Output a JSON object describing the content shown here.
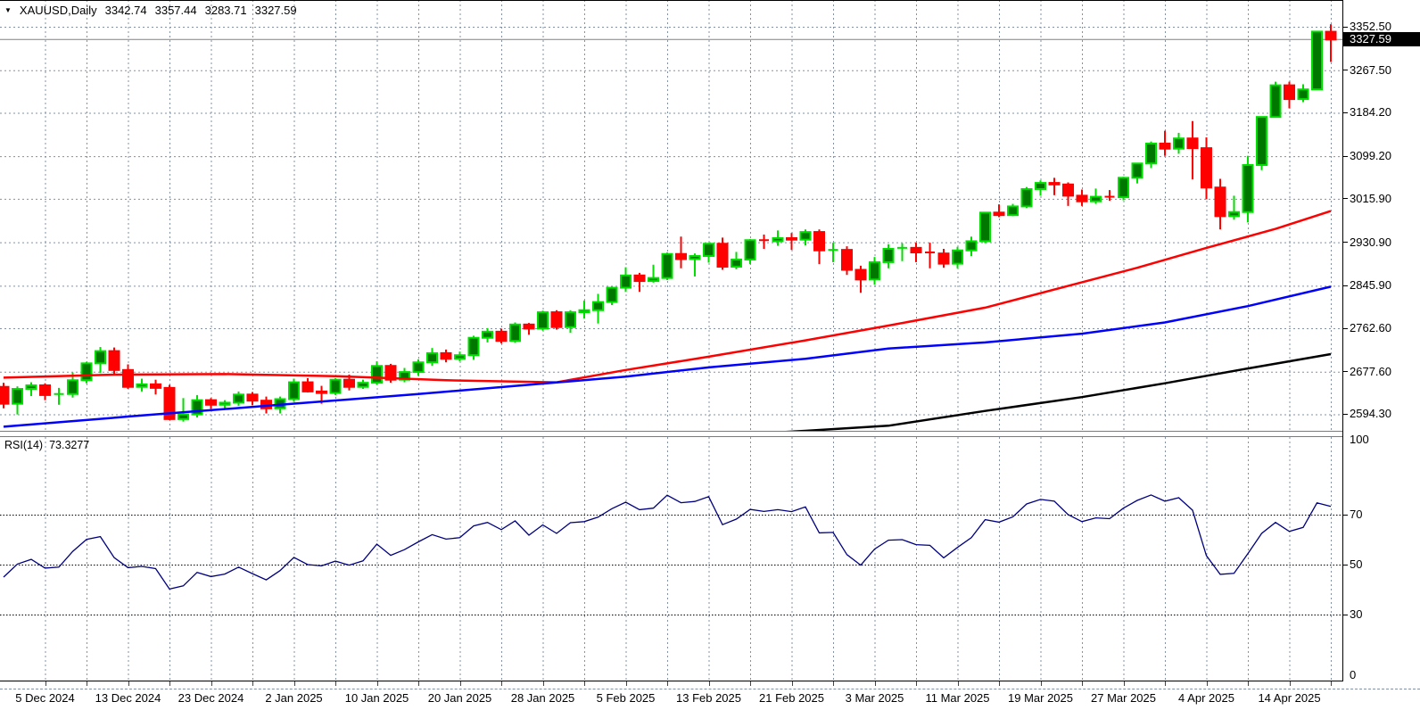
{
  "window": {
    "dropdown_icon": "triangle-down",
    "symbol": "XAUUSD,Daily",
    "ohlc": {
      "open": "3342.74",
      "high": "3357.44",
      "low": "3283.71",
      "close": "3327.59"
    }
  },
  "indicator_row": {
    "label": "RSI(14)",
    "value": "73.3277"
  },
  "price_axis": {
    "labels": [
      "3352.50",
      "3267.50",
      "3184.20",
      "3099.20",
      "3015.90",
      "2930.90",
      "2845.90",
      "2762.60",
      "2677.60",
      "2594.30"
    ],
    "values": [
      3352.5,
      3267.5,
      3184.2,
      3099.2,
      3015.9,
      2930.9,
      2845.9,
      2762.6,
      2677.6,
      2594.3
    ],
    "current_label": "3327.59",
    "current_value": 3327.59
  },
  "rsi_axis": {
    "labels": [
      "100",
      "70",
      "50",
      "30",
      "0"
    ],
    "values": [
      100,
      70,
      50,
      30,
      0
    ]
  },
  "colors": {
    "background": "#FFFFFF",
    "border": "#000000",
    "grid": "#8291A5",
    "bull_fill": "#007800",
    "bull_edge": "#00DF00",
    "bear_fill": "#FF0000",
    "bear_edge": "#FF0000",
    "ma_red": "#FF0000",
    "ma_blue": "#0000FF",
    "ma_black": "#000000",
    "rsi_line": "#000080",
    "rsi_level": "#000000",
    "current_price_line": "#808080",
    "tag_bg": "#000000",
    "tag_text": "#FFFFFF"
  },
  "chart_data": {
    "type": "candlestick",
    "symbol": "XAUUSD",
    "timeframe": "Daily",
    "title": "XAUUSD,Daily 3342.74 3357.44 3283.71 3327.59",
    "grid": true,
    "legend_position": "none",
    "y_axis_side": "right",
    "ylim": [
      2560,
      3404
    ],
    "y_gridline_prices": [
      3352.5,
      3267.5,
      3184.2,
      3099.2,
      3015.9,
      2930.9,
      2845.9,
      2762.6,
      2677.6,
      2594.3
    ],
    "current_bid": 3327.59,
    "x_labels": [
      {
        "text": "5 Dec 2024",
        "bar": 3
      },
      {
        "text": "13 Dec 2024",
        "bar": 9
      },
      {
        "text": "23 Dec 2024",
        "bar": 15
      },
      {
        "text": "2 Jan 2025",
        "bar": 21
      },
      {
        "text": "10 Jan 2025",
        "bar": 27
      },
      {
        "text": "20 Jan 2025",
        "bar": 33
      },
      {
        "text": "28 Jan 2025",
        "bar": 39
      },
      {
        "text": "5 Feb 2025",
        "bar": 45
      },
      {
        "text": "13 Feb 2025",
        "bar": 51
      },
      {
        "text": "21 Feb 2025",
        "bar": 57
      },
      {
        "text": "3 Mar 2025",
        "bar": 63
      },
      {
        "text": "11 Mar 2025",
        "bar": 69
      },
      {
        "text": "19 Mar 2025",
        "bar": 75
      },
      {
        "text": "27 Mar 2025",
        "bar": 81
      },
      {
        "text": "4 Apr 2025",
        "bar": 87
      },
      {
        "text": "14 Apr 2025",
        "bar": 93
      }
    ],
    "candles": {
      "columns": [
        "date",
        "open",
        "high",
        "low",
        "close"
      ],
      "rows": [
        [
          "2 Dec 2024",
          2648,
          2656,
          2606,
          2615
        ],
        [
          "3 Dec 2024",
          2615,
          2649,
          2594,
          2644
        ],
        [
          "4 Dec 2024",
          2644,
          2657,
          2630,
          2651
        ],
        [
          "5 Dec 2024",
          2651,
          2655,
          2622,
          2632
        ],
        [
          "6 Dec 2024",
          2632,
          2646,
          2613,
          2634
        ],
        [
          "9 Dec 2024",
          2634,
          2676,
          2627,
          2661
        ],
        [
          "10 Dec 2024",
          2661,
          2697,
          2655,
          2694
        ],
        [
          "11 Dec 2024",
          2694,
          2726,
          2675,
          2718
        ],
        [
          "12 Dec 2024",
          2718,
          2725,
          2672,
          2681
        ],
        [
          "13 Dec 2024",
          2681,
          2692,
          2644,
          2648
        ],
        [
          "16 Dec 2024",
          2648,
          2664,
          2639,
          2653
        ],
        [
          "17 Dec 2024",
          2653,
          2662,
          2633,
          2646
        ],
        [
          "18 Dec 2024",
          2646,
          2652,
          2583,
          2585
        ],
        [
          "19 Dec 2024",
          2585,
          2626,
          2580,
          2594
        ],
        [
          "20 Dec 2024",
          2594,
          2632,
          2588,
          2622
        ],
        [
          "23 Dec 2024",
          2622,
          2626,
          2605,
          2613
        ],
        [
          "24 Dec 2024",
          2613,
          2622,
          2605,
          2617
        ],
        [
          "26 Dec 2024",
          2617,
          2639,
          2611,
          2633
        ],
        [
          "27 Dec 2024",
          2633,
          2638,
          2612,
          2621
        ],
        [
          "30 Dec 2024",
          2621,
          2629,
          2596,
          2606
        ],
        [
          "31 Dec 2024",
          2606,
          2629,
          2596,
          2624
        ],
        [
          "2 Jan 2025",
          2624,
          2664,
          2619,
          2657
        ],
        [
          "3 Jan 2025",
          2657,
          2665,
          2637,
          2639
        ],
        [
          "6 Jan 2025",
          2639,
          2650,
          2615,
          2636
        ],
        [
          "7 Jan 2025",
          2636,
          2665,
          2632,
          2662
        ],
        [
          "8 Jan 2025",
          2662,
          2672,
          2641,
          2648
        ],
        [
          "9 Jan 2025",
          2648,
          2662,
          2644,
          2656
        ],
        [
          "10 Jan 2025",
          2656,
          2698,
          2652,
          2689
        ],
        [
          "13 Jan 2025",
          2689,
          2693,
          2656,
          2662
        ],
        [
          "14 Jan 2025",
          2662,
          2685,
          2657,
          2677
        ],
        [
          "15 Jan 2025",
          2677,
          2702,
          2670,
          2696
        ],
        [
          "16 Jan 2025",
          2696,
          2724,
          2689,
          2714
        ],
        [
          "17 Jan 2025",
          2714,
          2721,
          2696,
          2703
        ],
        [
          "20 Jan 2025",
          2703,
          2717,
          2698,
          2710
        ],
        [
          "21 Jan 2025",
          2710,
          2748,
          2701,
          2744
        ],
        [
          "22 Jan 2025",
          2744,
          2763,
          2735,
          2756
        ],
        [
          "23 Jan 2025",
          2756,
          2762,
          2733,
          2738
        ],
        [
          "24 Jan 2025",
          2738,
          2774,
          2734,
          2770
        ],
        [
          "27 Jan 2025",
          2770,
          2773,
          2750,
          2762
        ],
        [
          "28 Jan 2025",
          2762,
          2797,
          2758,
          2794
        ],
        [
          "29 Jan 2025",
          2794,
          2798,
          2760,
          2765
        ],
        [
          "30 Jan 2025",
          2765,
          2798,
          2754,
          2794
        ],
        [
          "31 Jan 2025",
          2794,
          2817,
          2782,
          2798
        ],
        [
          "3 Feb 2025",
          2798,
          2830,
          2772,
          2814
        ],
        [
          "4 Feb 2025",
          2814,
          2845,
          2808,
          2842
        ],
        [
          "5 Feb 2025",
          2842,
          2882,
          2834,
          2866
        ],
        [
          "6 Feb 2025",
          2866,
          2871,
          2834,
          2855
        ],
        [
          "7 Feb 2025",
          2855,
          2887,
          2852,
          2861
        ],
        [
          "10 Feb 2025",
          2861,
          2911,
          2857,
          2908
        ],
        [
          "11 Feb 2025",
          2908,
          2942,
          2880,
          2898
        ],
        [
          "12 Feb 2025",
          2898,
          2909,
          2864,
          2904
        ],
        [
          "13 Feb 2025",
          2904,
          2930,
          2891,
          2928
        ],
        [
          "14 Feb 2025",
          2928,
          2940,
          2877,
          2883
        ],
        [
          "17 Feb 2025",
          2883,
          2912,
          2878,
          2897
        ],
        [
          "18 Feb 2025",
          2897,
          2937,
          2888,
          2935
        ],
        [
          "19 Feb 2025",
          2935,
          2946,
          2918,
          2933
        ],
        [
          "20 Feb 2025",
          2933,
          2954,
          2924,
          2939
        ],
        [
          "21 Feb 2025",
          2939,
          2949,
          2916,
          2936
        ],
        [
          "24 Feb 2025",
          2936,
          2956,
          2925,
          2951
        ],
        [
          "25 Feb 2025",
          2951,
          2956,
          2888,
          2915
        ],
        [
          "26 Feb 2025",
          2915,
          2930,
          2892,
          2916
        ],
        [
          "27 Feb 2025",
          2916,
          2923,
          2867,
          2877
        ],
        [
          "28 Feb 2025",
          2877,
          2885,
          2832,
          2858
        ],
        [
          "3 Mar 2025",
          2858,
          2902,
          2848,
          2892
        ],
        [
          "4 Mar 2025",
          2892,
          2927,
          2880,
          2918
        ],
        [
          "5 Mar 2025",
          2918,
          2929,
          2894,
          2920
        ],
        [
          "6 Mar 2025",
          2920,
          2930,
          2892,
          2911
        ],
        [
          "7 Mar 2025",
          2911,
          2930,
          2880,
          2909
        ],
        [
          "10 Mar 2025",
          2909,
          2918,
          2881,
          2889
        ],
        [
          "11 Mar 2025",
          2889,
          2922,
          2880,
          2915
        ],
        [
          "12 Mar 2025",
          2915,
          2942,
          2904,
          2933
        ],
        [
          "13 Mar 2025",
          2933,
          2990,
          2929,
          2989
        ],
        [
          "14 Mar 2025",
          2989,
          3005,
          2980,
          2984
        ],
        [
          "17 Mar 2025",
          2984,
          3006,
          2982,
          3001
        ],
        [
          "18 Mar 2025",
          3001,
          3039,
          2998,
          3035
        ],
        [
          "19 Mar 2025",
          3035,
          3052,
          3022,
          3047
        ],
        [
          "20 Mar 2025",
          3047,
          3057,
          3023,
          3044
        ],
        [
          "21 Mar 2025",
          3044,
          3048,
          3002,
          3022
        ],
        [
          "24 Mar 2025",
          3022,
          3034,
          3002,
          3011
        ],
        [
          "25 Mar 2025",
          3011,
          3036,
          3006,
          3020
        ],
        [
          "26 Mar 2025",
          3020,
          3033,
          3012,
          3019
        ],
        [
          "27 Mar 2025",
          3019,
          3059,
          3013,
          3057
        ],
        [
          "28 Mar 2025",
          3057,
          3086,
          3046,
          3085
        ],
        [
          "31 Mar 2025",
          3085,
          3128,
          3076,
          3124
        ],
        [
          "1 Apr 2025",
          3124,
          3149,
          3100,
          3114
        ],
        [
          "2 Apr 2025",
          3114,
          3145,
          3104,
          3134
        ],
        [
          "3 Apr 2025",
          3134,
          3168,
          3054,
          3115
        ],
        [
          "4 Apr 2025",
          3115,
          3136,
          3015,
          3038
        ],
        [
          "7 Apr 2025",
          3038,
          3055,
          2956,
          2982
        ],
        [
          "8 Apr 2025",
          2982,
          3022,
          2975,
          2990
        ],
        [
          "9 Apr 2025",
          2990,
          3100,
          2970,
          3082
        ],
        [
          "10 Apr 2025",
          3082,
          3176,
          3072,
          3176
        ],
        [
          "11 Apr 2025",
          3176,
          3245,
          3176,
          3238
        ],
        [
          "14 Apr 2025",
          3238,
          3245,
          3193,
          3211
        ],
        [
          "15 Apr 2025",
          3211,
          3240,
          3205,
          3230
        ],
        [
          "16 Apr 2025",
          3230,
          3343,
          3229,
          3343
        ],
        [
          "17 Apr 2025",
          3342.74,
          3357.44,
          3283.71,
          3327.59
        ]
      ]
    },
    "overlays": [
      {
        "name": "ma-red",
        "color": "#FF0000",
        "points": [
          [
            0,
            2666
          ],
          [
            8,
            2672
          ],
          [
            16,
            2673
          ],
          [
            24,
            2669
          ],
          [
            32,
            2661
          ],
          [
            40,
            2657
          ],
          [
            45,
            2681
          ],
          [
            51,
            2707
          ],
          [
            58,
            2739
          ],
          [
            64,
            2768
          ],
          [
            71,
            2803
          ],
          [
            82,
            2881
          ],
          [
            87,
            2920
          ],
          [
            92,
            2957
          ],
          [
            96,
            2992
          ]
        ]
      },
      {
        "name": "ma-blue",
        "color": "#0000FF",
        "points": [
          [
            0,
            2570
          ],
          [
            10,
            2592
          ],
          [
            20,
            2613
          ],
          [
            30,
            2634
          ],
          [
            38,
            2652
          ],
          [
            45,
            2668
          ],
          [
            51,
            2686
          ],
          [
            58,
            2703
          ],
          [
            64,
            2723
          ],
          [
            71,
            2735
          ],
          [
            78,
            2752
          ],
          [
            84,
            2774
          ],
          [
            90,
            2806
          ],
          [
            96,
            2844
          ]
        ]
      },
      {
        "name": "ma-black",
        "color": "#000000",
        "points": [
          [
            52,
            2553
          ],
          [
            58,
            2562
          ],
          [
            64,
            2572
          ],
          [
            71,
            2601
          ],
          [
            78,
            2628
          ],
          [
            84,
            2655
          ],
          [
            90,
            2684
          ],
          [
            96,
            2712
          ]
        ]
      }
    ],
    "rsi": {
      "label": "RSI(14)",
      "current_value": 73.3277,
      "scale": [
        0,
        100
      ],
      "level_lines": [
        70,
        50,
        30
      ],
      "values": [
        45.0,
        50.2,
        52.1,
        48.6,
        49.0,
        55.3,
        60.1,
        61.2,
        52.8,
        48.8,
        49.3,
        48.4,
        40.2,
        41.5,
        46.9,
        45.2,
        46.2,
        49.0,
        46.4,
        43.9,
        47.6,
        52.9,
        50.0,
        49.5,
        51.4,
        49.8,
        51.5,
        58.2,
        53.7,
        56.0,
        59.1,
        62.0,
        60.2,
        60.8,
        65.5,
        66.9,
        64.0,
        67.5,
        61.8,
        65.9,
        62.5,
        66.8,
        67.2,
        69.0,
        72.4,
        75.0,
        72.0,
        72.6,
        77.8,
        74.8,
        75.3,
        77.2,
        66.0,
        68.2,
        72.1,
        71.3,
        72.0,
        71.2,
        73.1,
        62.7,
        62.9,
        54.0,
        49.8,
        56.2,
        59.8,
        60.0,
        58.0,
        57.7,
        52.7,
        56.9,
        60.8,
        68.0,
        67.0,
        69.1,
        74.3,
        76.1,
        75.4,
        70.0,
        67.2,
        68.7,
        68.4,
        72.6,
        75.7,
        77.9,
        75.4,
        76.8,
        71.8,
        53.6,
        46.1,
        46.5,
        54.4,
        62.5,
        66.9,
        63.3,
        64.9,
        74.7,
        73.3277
      ]
    }
  }
}
